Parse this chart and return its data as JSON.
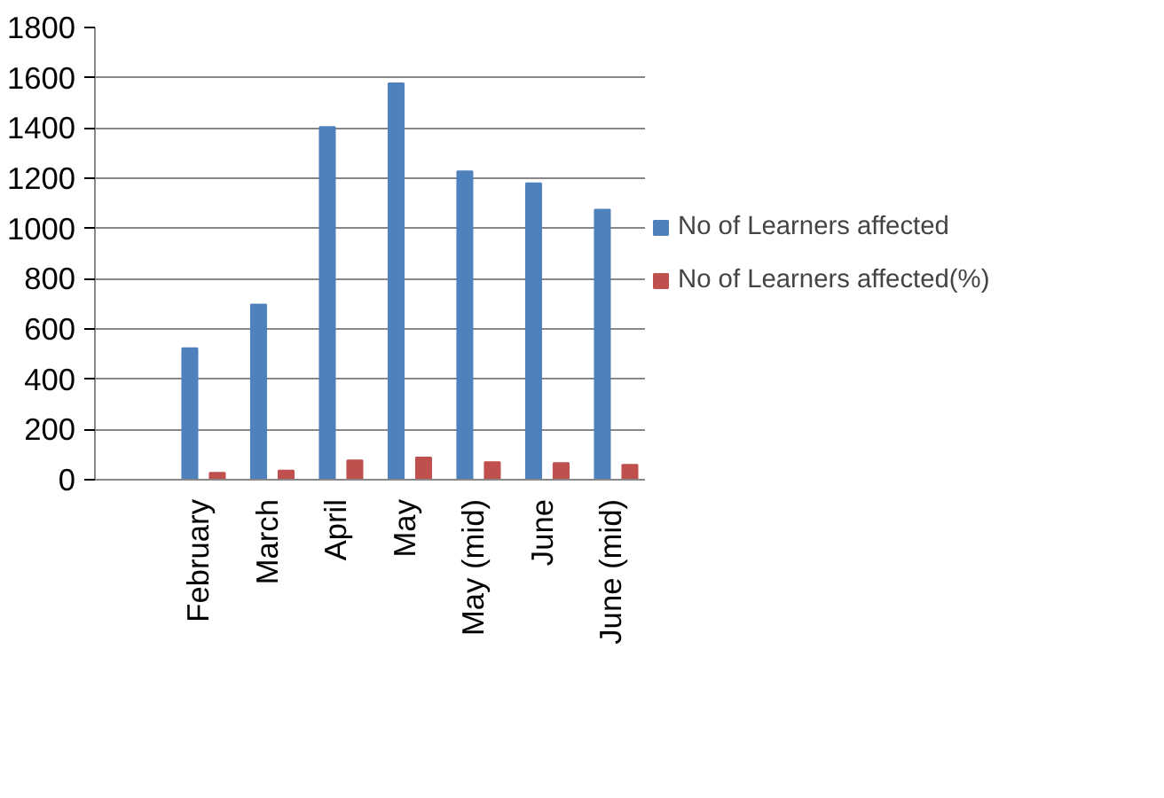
{
  "chart_data": {
    "type": "bar",
    "categories": [
      null,
      "February",
      "March",
      "April",
      "May",
      "May (mid)",
      "June",
      "June (mid)"
    ],
    "series": [
      {
        "name": "No of Learners affected",
        "color": "#4f81bd",
        "values": [
          null,
          523,
          697,
          1404,
          1578,
          1227,
          1180,
          1075
        ]
      },
      {
        "name": "No of Learners affected(%)",
        "color": "#c0504d",
        "values": [
          null,
          27,
          36,
          77,
          88,
          70,
          66,
          59
        ]
      }
    ],
    "ylim": [
      0,
      1800
    ],
    "yticks": [
      0,
      200,
      400,
      600,
      800,
      1000,
      1200,
      1400,
      1600,
      1800
    ],
    "grid": "y",
    "legend": "right"
  }
}
